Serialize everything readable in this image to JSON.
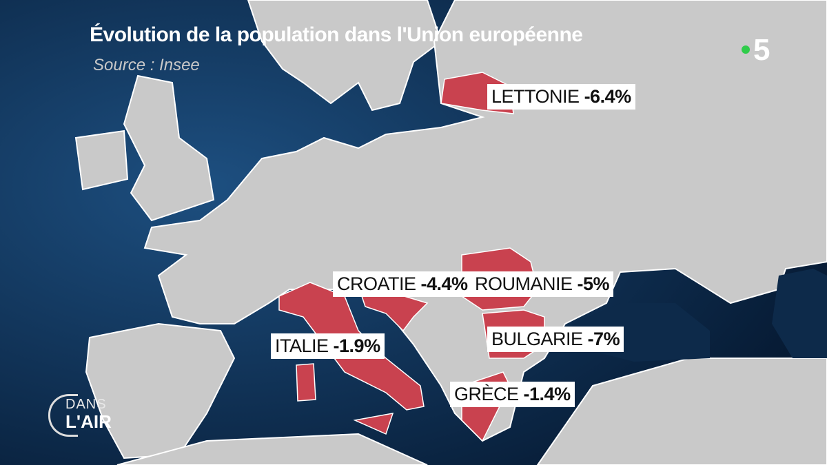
{
  "header": {
    "title": "Évolution de la population dans l'Union européenne",
    "source": "Source : Insee"
  },
  "labels": [
    {
      "name": "LETTONIE",
      "value": "-6.4%"
    },
    {
      "name": "CROATIE",
      "value": "-4.4%"
    },
    {
      "name": "ROUMANIE",
      "value": "-5%"
    },
    {
      "name": "ITALIE",
      "value": "-1.9%"
    },
    {
      "name": "BULGARIE",
      "value": "-7%"
    },
    {
      "name": "GRÈCE",
      "value": "-1.4%"
    }
  ],
  "logo": {
    "channel": "5",
    "show_top": "DANS",
    "show_bottom": "L'AIR"
  }
}
